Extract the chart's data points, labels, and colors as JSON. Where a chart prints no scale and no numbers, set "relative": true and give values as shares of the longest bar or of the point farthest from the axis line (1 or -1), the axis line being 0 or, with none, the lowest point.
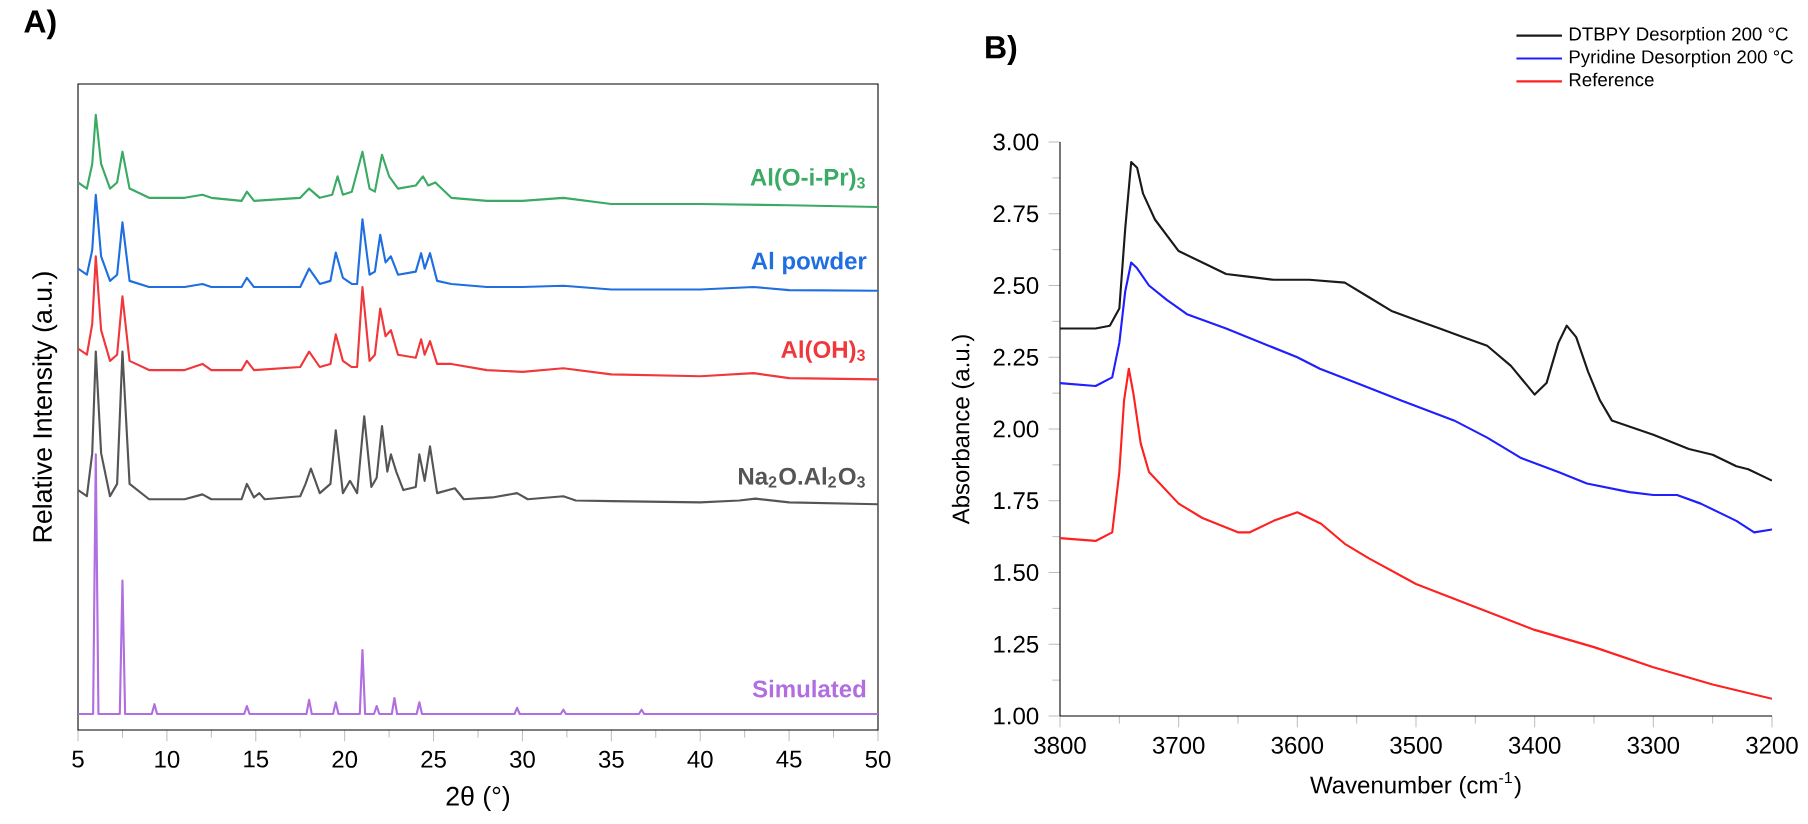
{
  "chart_data": [
    {
      "type": "line",
      "title": "A)",
      "xlabel": "2θ (°)",
      "ylabel": "Relative Intensity (a.u.)",
      "relative": true,
      "xlim": [
        5,
        50
      ],
      "xticks": [
        5,
        10,
        15,
        20,
        25,
        30,
        35,
        40,
        45,
        50
      ],
      "series": [
        {
          "name": "Al(O-i-Pr)$_{3}$",
          "color": "#3aaa64",
          "x": [
            5,
            5.5,
            5.8,
            6.0,
            6.3,
            6.8,
            7.2,
            7.5,
            7.9,
            9,
            11,
            12,
            12.5,
            14.2,
            14.5,
            14.9,
            17.5,
            18,
            18.6,
            19.3,
            19.6,
            19.9,
            20.4,
            21,
            21.4,
            21.7,
            22.1,
            22.5,
            23,
            24,
            24.4,
            24.7,
            25.1,
            26,
            28,
            30,
            32.3,
            35,
            40,
            45,
            50
          ],
          "values": [
            0.89,
            0.88,
            0.92,
            1.0,
            0.92,
            0.88,
            0.89,
            0.94,
            0.88,
            0.865,
            0.865,
            0.87,
            0.865,
            0.86,
            0.875,
            0.86,
            0.865,
            0.88,
            0.865,
            0.87,
            0.9,
            0.87,
            0.875,
            0.94,
            0.88,
            0.875,
            0.935,
            0.9,
            0.88,
            0.885,
            0.9,
            0.885,
            0.89,
            0.865,
            0.86,
            0.86,
            0.865,
            0.855,
            0.855,
            0.853,
            0.85
          ]
        },
        {
          "name": "Al powder",
          "color": "#1f6fe0",
          "x": [
            5,
            5.5,
            5.8,
            6.0,
            6.3,
            6.8,
            7.2,
            7.5,
            7.9,
            9,
            11,
            12,
            12.5,
            14.2,
            14.5,
            14.9,
            17.5,
            18,
            18.6,
            19.2,
            19.5,
            19.9,
            20.4,
            20.7,
            21,
            21.4,
            21.7,
            22,
            22.3,
            22.6,
            23,
            24,
            24.3,
            24.5,
            24.8,
            25.2,
            26,
            28,
            30,
            32.3,
            35,
            40,
            43,
            45,
            50
          ],
          "values": [
            0.75,
            0.74,
            0.78,
            0.87,
            0.77,
            0.73,
            0.74,
            0.825,
            0.73,
            0.72,
            0.72,
            0.725,
            0.72,
            0.72,
            0.735,
            0.72,
            0.72,
            0.75,
            0.725,
            0.73,
            0.776,
            0.735,
            0.725,
            0.725,
            0.83,
            0.74,
            0.745,
            0.805,
            0.76,
            0.77,
            0.74,
            0.745,
            0.775,
            0.75,
            0.775,
            0.73,
            0.725,
            0.72,
            0.72,
            0.722,
            0.716,
            0.716,
            0.72,
            0.715,
            0.714
          ]
        },
        {
          "name": "Al(OH)$_{3}$",
          "color": "#f0383c",
          "x": [
            5,
            5.5,
            5.8,
            6.0,
            6.3,
            6.8,
            7.2,
            7.5,
            7.9,
            9,
            11,
            12,
            12.5,
            14.2,
            14.5,
            14.9,
            17.5,
            18,
            18.6,
            19.2,
            19.5,
            19.9,
            20.4,
            20.7,
            21,
            21.4,
            21.7,
            22,
            22.3,
            22.6,
            23,
            24,
            24.3,
            24.5,
            24.8,
            25.2,
            26,
            28,
            30,
            32.3,
            35,
            40,
            43,
            45,
            50
          ],
          "values": [
            0.62,
            0.61,
            0.66,
            0.77,
            0.65,
            0.6,
            0.61,
            0.705,
            0.6,
            0.585,
            0.585,
            0.595,
            0.585,
            0.585,
            0.6,
            0.585,
            0.59,
            0.615,
            0.59,
            0.595,
            0.643,
            0.6,
            0.59,
            0.59,
            0.72,
            0.6,
            0.61,
            0.685,
            0.64,
            0.65,
            0.61,
            0.605,
            0.635,
            0.61,
            0.632,
            0.595,
            0.595,
            0.585,
            0.582,
            0.588,
            0.578,
            0.575,
            0.58,
            0.572,
            0.57
          ]
        },
        {
          "name": "Na$_{2}$O.Al$_{2}$O$_{3}$",
          "color": "#555555",
          "x": [
            5,
            5.5,
            5.8,
            6.0,
            6.3,
            6.8,
            7.2,
            7.5,
            7.9,
            9,
            11,
            12,
            12.5,
            14.2,
            14.5,
            14.9,
            15.2,
            15.5,
            17.5,
            17.8,
            18.1,
            18.6,
            19.2,
            19.5,
            19.9,
            20.3,
            20.7,
            21.1,
            21.5,
            21.8,
            22.1,
            22.4,
            22.6,
            22.9,
            23.3,
            24,
            24.2,
            24.5,
            24.8,
            25.2,
            26.2,
            26.7,
            28.3,
            29.7,
            30.3,
            32.3,
            33,
            35,
            40,
            42.2,
            43.1,
            45,
            50
          ],
          "values": [
            0.39,
            0.38,
            0.45,
            0.615,
            0.45,
            0.38,
            0.4,
            0.615,
            0.4,
            0.375,
            0.375,
            0.383,
            0.375,
            0.375,
            0.4,
            0.378,
            0.385,
            0.375,
            0.38,
            0.4,
            0.425,
            0.385,
            0.4,
            0.487,
            0.385,
            0.405,
            0.385,
            0.51,
            0.395,
            0.41,
            0.494,
            0.42,
            0.448,
            0.42,
            0.39,
            0.395,
            0.448,
            0.405,
            0.461,
            0.385,
            0.393,
            0.375,
            0.378,
            0.385,
            0.375,
            0.38,
            0.373,
            0.372,
            0.37,
            0.373,
            0.376,
            0.37,
            0.367
          ]
        },
        {
          "name": "Simulated",
          "color": "#b06ee0",
          "x": [
            5,
            5.85,
            6.0,
            6.15,
            7.35,
            7.5,
            7.65,
            9.15,
            9.3,
            9.45,
            14.35,
            14.5,
            14.65,
            17.85,
            18.0,
            18.15,
            19.35,
            19.5,
            19.65,
            20.85,
            21.0,
            21.15,
            21.65,
            21.8,
            21.95,
            22.65,
            22.8,
            22.95,
            24.05,
            24.2,
            24.35,
            29.55,
            29.7,
            29.85,
            32.15,
            32.3,
            32.45,
            36.55,
            36.7,
            36.85,
            50
          ],
          "values": [
            0.026,
            0.026,
            0.448,
            0.026,
            0.026,
            0.243,
            0.026,
            0.026,
            0.042,
            0.026,
            0.026,
            0.039,
            0.026,
            0.026,
            0.049,
            0.026,
            0.026,
            0.045,
            0.026,
            0.026,
            0.13,
            0.026,
            0.026,
            0.039,
            0.026,
            0.026,
            0.052,
            0.026,
            0.026,
            0.045,
            0.026,
            0.026,
            0.036,
            0.026,
            0.026,
            0.033,
            0.026,
            0.026,
            0.033,
            0.026,
            0.026
          ]
        }
      ]
    },
    {
      "type": "line",
      "title": "B)",
      "xlabel": "Wavenumber (cm$^{-1}$)",
      "ylabel": "Absorbance (a.u.)",
      "legend": "top right",
      "xlim": [
        3800,
        3200
      ],
      "xticks": [
        3800,
        3700,
        3600,
        3500,
        3400,
        3300,
        3200
      ],
      "ylim": [
        1.0,
        3.0
      ],
      "yticks": [
        {
          "value": 1.0,
          "label": "1.00"
        },
        {
          "value": 1.25,
          "label": "1.25"
        },
        {
          "value": 1.5,
          "label": "1.50"
        },
        {
          "value": 1.75,
          "label": "1.75"
        },
        {
          "value": 2.0,
          "label": "2.00"
        },
        {
          "value": 2.25,
          "label": "2.25"
        },
        {
          "value": 2.5,
          "label": "2.50"
        },
        {
          "value": 2.75,
          "label": "2.75"
        },
        {
          "value": 3.0,
          "label": "3.00"
        }
      ],
      "series": [
        {
          "name": "DTBPY  Desorption 200 °C",
          "color": "#1a1a1a",
          "x": [
            3800,
            3770,
            3758,
            3750,
            3745,
            3740,
            3735,
            3730,
            3720,
            3700,
            3680,
            3660,
            3640,
            3620,
            3590,
            3560,
            3540,
            3520,
            3500,
            3480,
            3460,
            3440,
            3420,
            3410,
            3400,
            3390,
            3380,
            3373,
            3365,
            3355,
            3345,
            3335,
            3300,
            3270,
            3250,
            3230,
            3220,
            3200
          ],
          "values": [
            2.35,
            2.35,
            2.36,
            2.42,
            2.7,
            2.93,
            2.91,
            2.82,
            2.73,
            2.62,
            2.58,
            2.54,
            2.53,
            2.52,
            2.52,
            2.51,
            2.46,
            2.41,
            2.38,
            2.35,
            2.32,
            2.29,
            2.22,
            2.17,
            2.12,
            2.16,
            2.3,
            2.36,
            2.32,
            2.2,
            2.1,
            2.03,
            1.98,
            1.93,
            1.91,
            1.87,
            1.86,
            1.82
          ]
        },
        {
          "name": "Pyridine Desorption 200 °C",
          "color": "#1f1fff",
          "x": [
            3800,
            3770,
            3756,
            3750,
            3745,
            3740,
            3735,
            3725,
            3710,
            3693,
            3660,
            3636,
            3600,
            3581,
            3550,
            3513,
            3468,
            3440,
            3412,
            3380,
            3356,
            3320,
            3300,
            3280,
            3260,
            3250,
            3230,
            3215,
            3200
          ],
          "values": [
            2.16,
            2.15,
            2.18,
            2.3,
            2.48,
            2.58,
            2.56,
            2.5,
            2.45,
            2.4,
            2.35,
            2.31,
            2.25,
            2.21,
            2.16,
            2.1,
            2.03,
            1.97,
            1.9,
            1.85,
            1.81,
            1.78,
            1.77,
            1.77,
            1.74,
            1.72,
            1.68,
            1.64,
            1.65
          ]
        },
        {
          "name": "Reference",
          "color": "#ff2020",
          "x": [
            3800,
            3770,
            3756,
            3750,
            3746,
            3742,
            3738,
            3732,
            3725,
            3700,
            3680,
            3650,
            3640,
            3620,
            3600,
            3580,
            3560,
            3540,
            3500,
            3450,
            3400,
            3350,
            3300,
            3250,
            3200
          ],
          "values": [
            1.62,
            1.61,
            1.64,
            1.85,
            2.1,
            2.21,
            2.12,
            1.95,
            1.85,
            1.74,
            1.69,
            1.64,
            1.64,
            1.68,
            1.71,
            1.67,
            1.6,
            1.55,
            1.46,
            1.38,
            1.3,
            1.24,
            1.17,
            1.11,
            1.06
          ]
        }
      ]
    }
  ]
}
